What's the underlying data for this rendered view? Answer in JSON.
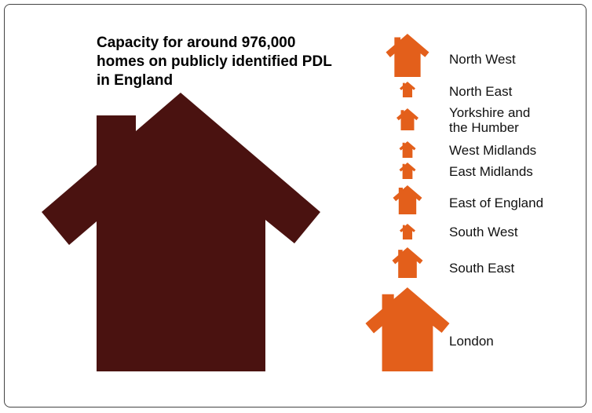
{
  "title": "Capacity for around 976,000 homes on publicly identified PDL in England",
  "regions": [
    "North West",
    "North East",
    "Yorkshire and the Humber",
    "West Midlands",
    "East Midlands",
    "East of England",
    "South West",
    "South East",
    "London"
  ]
}
